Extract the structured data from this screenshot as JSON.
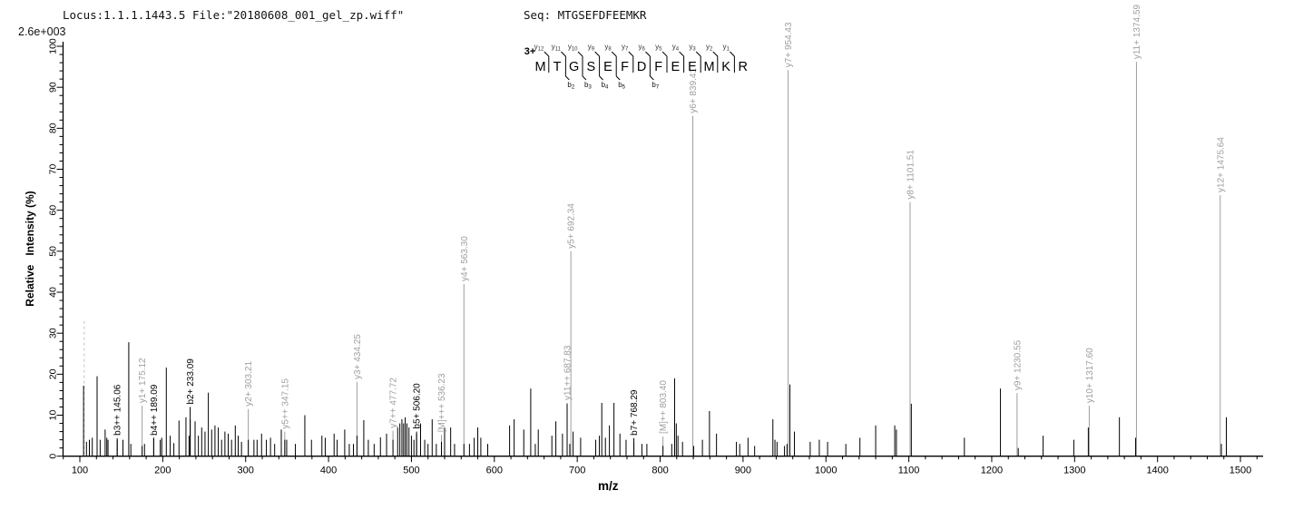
{
  "header": {
    "locus_file": "Locus:1.1.1.1443.5 File:\"20180608_001_gel_zp.wiff\"",
    "seq": "Seq: MTGSEFDFEEMKR"
  },
  "base_peak_label": "2.6e+003",
  "axes": {
    "x_title": "m/z",
    "y_title": "Relative   Intensity (%)",
    "x_major_ticks": [
      100,
      200,
      300,
      400,
      500,
      600,
      700,
      800,
      900,
      1000,
      1100,
      1200,
      1300,
      1400,
      1500
    ],
    "x_minor_step": 20,
    "x_minor_start": 80,
    "x_minor_end": 1520,
    "y_major_ticks": [
      0,
      10,
      20,
      30,
      40,
      50,
      60,
      70,
      80,
      90,
      100
    ],
    "y_minor_step": 2
  },
  "sequence_ladder": {
    "charge": "3+",
    "residues": [
      "M",
      "T",
      "G",
      "S",
      "E",
      "F",
      "D",
      "F",
      "E",
      "E",
      "M",
      "K",
      "R"
    ],
    "gaps": [
      {
        "y": 12
      },
      {
        "y": 11,
        "b": 2
      },
      {
        "y": 10,
        "b": 3
      },
      {
        "y": 9,
        "b": 4
      },
      {
        "y": 8,
        "b": 5
      },
      {
        "y": 7
      },
      {
        "y": 6,
        "b": 7
      },
      {
        "y": 5
      },
      {
        "y": 4
      },
      {
        "y": 3
      },
      {
        "y": 2
      },
      {
        "y": 1
      }
    ]
  },
  "colors": {
    "background": "#ffffff",
    "axis": "#000000",
    "peak": "#000000",
    "y_ion": "#9e9e9e",
    "m_ion": "#9e9e9e",
    "b_ion": "#000000",
    "precursor_dash": "#c2c2c2",
    "ladder": "#000000"
  },
  "chart_data": {
    "type": "bar",
    "subtype": "ms2-fragment-spectrum",
    "xlabel": "m/z",
    "ylabel": "Relative   Intensity (%)",
    "xlim": [
      80,
      1525
    ],
    "ylim": [
      0,
      100
    ],
    "grid": false,
    "legend": false,
    "base_peak_intensity": "2.6e+003",
    "precursor_marker": {
      "mz": 105.3,
      "height_pct": 33,
      "style": "dashed"
    },
    "annotated_ions": [
      {
        "label": "b3++ 145.06",
        "mz": 145.06,
        "series": "b",
        "line_top_pct": 4.4
      },
      {
        "label": "y1+ 175.12",
        "mz": 175.12,
        "series": "y",
        "line_top_pct": 12.3
      },
      {
        "label": "b4++ 189.09",
        "mz": 189.09,
        "series": "b",
        "line_top_pct": 4.4
      },
      {
        "label": "b2+ 233.09",
        "mz": 233.09,
        "series": "b",
        "line_top_pct": 12.0
      },
      {
        "label": "y2+ 303.21",
        "mz": 303.21,
        "series": "y",
        "line_top_pct": 11.5
      },
      {
        "label": "y5++ 347.15",
        "mz": 347.15,
        "series": "y",
        "line_top_pct": 6.0
      },
      {
        "label": "y3+ 434.25",
        "mz": 434.25,
        "series": "y",
        "line_top_pct": 18.1
      },
      {
        "label": "y7++ 477.72",
        "mz": 477.72,
        "series": "y",
        "line_top_pct": 6.2
      },
      {
        "label": "b5+ 506.20",
        "mz": 506.2,
        "series": "b",
        "line_top_pct": 6.0
      },
      {
        "label": "[M]+++ 536.23",
        "mz": 536.23,
        "series": "M",
        "line_top_pct": 5.2
      },
      {
        "label": "y4+ 563.30",
        "mz": 563.3,
        "series": "y",
        "line_top_pct": 42.0
      },
      {
        "label": "y11++ 687.83",
        "mz": 687.83,
        "series": "y",
        "line_top_pct": 13.0
      },
      {
        "label": "y5+ 692.34",
        "mz": 692.34,
        "series": "y",
        "line_top_pct": 50.0
      },
      {
        "label": "b7+ 768.29",
        "mz": 768.29,
        "series": "b",
        "line_top_pct": 4.4
      },
      {
        "label": "[M]++ 803.40",
        "mz": 803.4,
        "series": "M",
        "line_top_pct": 4.8
      },
      {
        "label": "y6+ 839.41",
        "mz": 839.41,
        "series": "y",
        "line_top_pct": 83.0
      },
      {
        "label": "y7+ 954.43",
        "mz": 954.43,
        "series": "y",
        "line_top_pct": 94.2
      },
      {
        "label": "y8+ 1101.51",
        "mz": 1101.51,
        "series": "y",
        "line_top_pct": 62.0
      },
      {
        "label": "y9+ 1230.55",
        "mz": 1230.55,
        "series": "y",
        "line_top_pct": 15.4
      },
      {
        "label": "y10+ 1317.60",
        "mz": 1317.6,
        "series": "y",
        "line_top_pct": 12.3
      },
      {
        "label": "y11+ 1374.59",
        "mz": 1374.59,
        "series": "y",
        "line_top_pct": 96.2
      },
      {
        "label": "y12+ 1475.64",
        "mz": 1475.64,
        "series": "y",
        "line_top_pct": 63.7
      }
    ],
    "peaks": [
      [
        104.5,
        17.2
      ],
      [
        108,
        3.5
      ],
      [
        111.5,
        4
      ],
      [
        115,
        4.5
      ],
      [
        120.8,
        19.5
      ],
      [
        124.5,
        4
      ],
      [
        130.5,
        6.5
      ],
      [
        132.5,
        4.5
      ],
      [
        134,
        4
      ],
      [
        145.1,
        4
      ],
      [
        152,
        4
      ],
      [
        159,
        27.8
      ],
      [
        161.5,
        3
      ],
      [
        175.1,
        2.5
      ],
      [
        178,
        3
      ],
      [
        189.1,
        4.5
      ],
      [
        197,
        4
      ],
      [
        198.8,
        4.5
      ],
      [
        204.3,
        21.6
      ],
      [
        209,
        5
      ],
      [
        213.4,
        3.2
      ],
      [
        219.6,
        8.7
      ],
      [
        228,
        9.5
      ],
      [
        231.7,
        5
      ],
      [
        233.1,
        9
      ],
      [
        239,
        8.5
      ],
      [
        243,
        5
      ],
      [
        247,
        7
      ],
      [
        251,
        6
      ],
      [
        255,
        15.5
      ],
      [
        259,
        6.5
      ],
      [
        263,
        7.5
      ],
      [
        267,
        7
      ],
      [
        271,
        4
      ],
      [
        275,
        6
      ],
      [
        279,
        5.5
      ],
      [
        283,
        4
      ],
      [
        287.5,
        7.5
      ],
      [
        291,
        5
      ],
      [
        295,
        3.5
      ],
      [
        303.2,
        4
      ],
      [
        310,
        4
      ],
      [
        313.8,
        4
      ],
      [
        319.2,
        5.5
      ],
      [
        325,
        4
      ],
      [
        330,
        4.5
      ],
      [
        335,
        3
      ],
      [
        343,
        6.5
      ],
      [
        347.2,
        4
      ],
      [
        349.5,
        4
      ],
      [
        360,
        3
      ],
      [
        371.4,
        10
      ],
      [
        379.4,
        4
      ],
      [
        392,
        5
      ],
      [
        396,
        4.5
      ],
      [
        406.7,
        5.5
      ],
      [
        410.4,
        4
      ],
      [
        419.5,
        6.5
      ],
      [
        425,
        3
      ],
      [
        430,
        3
      ],
      [
        434.3,
        5
      ],
      [
        442.5,
        8.8
      ],
      [
        448,
        4
      ],
      [
        455,
        3
      ],
      [
        462.6,
        4.6
      ],
      [
        470,
        5.5
      ],
      [
        477.7,
        4
      ],
      [
        483.4,
        7
      ],
      [
        486,
        8
      ],
      [
        488.5,
        9
      ],
      [
        490.5,
        8
      ],
      [
        492.5,
        9.5
      ],
      [
        494.5,
        8
      ],
      [
        497,
        7
      ],
      [
        500,
        5
      ],
      [
        503,
        4
      ],
      [
        506.2,
        5.5
      ],
      [
        511,
        8
      ],
      [
        516,
        4
      ],
      [
        520,
        3
      ],
      [
        525,
        9
      ],
      [
        530,
        3
      ],
      [
        536.2,
        3.5
      ],
      [
        540,
        7
      ],
      [
        547.3,
        7
      ],
      [
        552,
        3
      ],
      [
        563.3,
        3
      ],
      [
        570,
        3
      ],
      [
        575.7,
        4.5
      ],
      [
        580,
        7
      ],
      [
        583.7,
        4.5
      ],
      [
        592,
        3
      ],
      [
        618.4,
        7.5
      ],
      [
        623.9,
        9
      ],
      [
        635.5,
        6.5
      ],
      [
        643.9,
        16.5
      ],
      [
        649.4,
        3
      ],
      [
        653,
        6.5
      ],
      [
        669.4,
        5
      ],
      [
        674.2,
        8.5
      ],
      [
        682.2,
        5.5
      ],
      [
        687.8,
        12.8
      ],
      [
        691,
        3
      ],
      [
        695,
        6
      ],
      [
        704.1,
        4.5
      ],
      [
        722.3,
        4
      ],
      [
        726.7,
        5
      ],
      [
        729.6,
        13
      ],
      [
        734,
        4.5
      ],
      [
        738.8,
        7.5
      ],
      [
        744.3,
        13
      ],
      [
        751.5,
        5.5
      ],
      [
        758.9,
        4
      ],
      [
        768.3,
        3.5
      ],
      [
        778,
        3
      ],
      [
        784,
        3
      ],
      [
        803.4,
        2.5
      ],
      [
        814,
        3
      ],
      [
        817.5,
        19
      ],
      [
        819.5,
        8
      ],
      [
        821.5,
        5
      ],
      [
        827,
        3.5
      ],
      [
        840.5,
        2.5
      ],
      [
        851,
        4
      ],
      [
        859.5,
        11
      ],
      [
        868,
        5.5
      ],
      [
        892,
        3.5
      ],
      [
        896,
        3
      ],
      [
        906,
        4.5
      ],
      [
        914,
        2.5
      ],
      [
        936,
        9
      ],
      [
        938.5,
        4
      ],
      [
        941,
        3.5
      ],
      [
        950,
        2.5
      ],
      [
        953,
        3
      ],
      [
        956.5,
        17.5
      ],
      [
        962,
        6
      ],
      [
        981,
        3.5
      ],
      [
        992,
        4
      ],
      [
        1002,
        3.5
      ],
      [
        1024,
        3
      ],
      [
        1041,
        4.5
      ],
      [
        1060,
        7.5
      ],
      [
        1083,
        7.5
      ],
      [
        1085,
        6.5
      ],
      [
        1103,
        12.8
      ],
      [
        1167,
        4.5
      ],
      [
        1210.5,
        16.5
      ],
      [
        1232,
        2
      ],
      [
        1262,
        5
      ],
      [
        1299,
        4
      ],
      [
        1316.5,
        7
      ],
      [
        1354,
        9.5
      ],
      [
        1373.5,
        4.5
      ],
      [
        1477,
        3
      ],
      [
        1483,
        9.5
      ]
    ]
  }
}
